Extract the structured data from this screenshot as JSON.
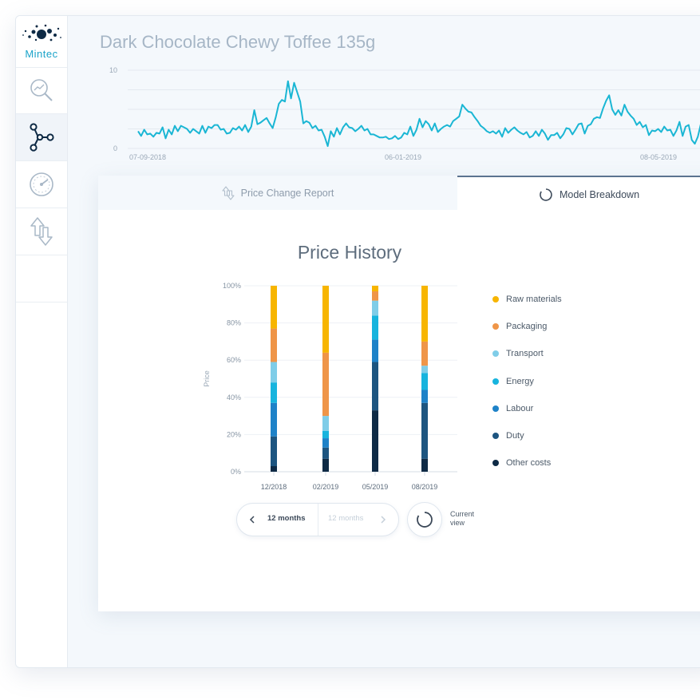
{
  "app": {
    "logo_text": "Mintec",
    "product_title": "Dark Chocolate Chewy Toffee 135g"
  },
  "sidebar": {
    "items": [
      {
        "icon": "chart-search-icon",
        "active": false
      },
      {
        "icon": "model-nodes-icon",
        "active": true
      },
      {
        "icon": "gauge-icon",
        "active": false
      },
      {
        "icon": "arrows-updown-icon",
        "active": false
      }
    ]
  },
  "tabs": {
    "price_change": "Price Change Report",
    "model_breakdown": "Model Breakdown"
  },
  "line_chart_data": {
    "type": "line",
    "y_ticks": [
      "10",
      "0"
    ],
    "ylim": [
      0,
      10
    ],
    "x_ticks": [
      "07-09-2018",
      "06-01-2019",
      "08-05-2019"
    ],
    "color": "#1ab6d4",
    "values": [
      2.2,
      1.6,
      2.4,
      1.8,
      1.9,
      1.5,
      2.0,
      1.9,
      2.7,
      1.3,
      2.4,
      1.8,
      2.9,
      2.2,
      2.9,
      2.7,
      2.5,
      2.0,
      2.5,
      2.2,
      1.9,
      2.9,
      2.0,
      2.8,
      2.6,
      3.0,
      3.0,
      2.4,
      2.5,
      1.9,
      2.0,
      2.6,
      2.4,
      2.8,
      2.3,
      3.0,
      2.1,
      2.8,
      4.9,
      3.1,
      3.3,
      3.6,
      3.9,
      3.2,
      2.6,
      4.0,
      5.7,
      6.2,
      6.0,
      8.6,
      6.4,
      8.4,
      7.2,
      6.0,
      3.2,
      3.5,
      3.3,
      2.6,
      2.9,
      2.3,
      2.4,
      1.5,
      0.3,
      2.2,
      1.5,
      2.6,
      1.8,
      2.7,
      3.2,
      2.7,
      2.6,
      2.2,
      2.5,
      2.9,
      2.3,
      2.5,
      1.8,
      1.8,
      1.6,
      1.4,
      1.4,
      1.5,
      1.2,
      1.3,
      1.6,
      1.2,
      1.4,
      2.0,
      1.8,
      2.8,
      1.6,
      2.4,
      3.8,
      2.7,
      3.5,
      3.1,
      2.3,
      3.2,
      2.1,
      2.5,
      2.8,
      3.0,
      2.8,
      3.5,
      3.8,
      4.1,
      5.6,
      5.1,
      4.7,
      4.6,
      4.0,
      3.5,
      2.9,
      2.6,
      2.2,
      2.0,
      2.2,
      1.9,
      2.3,
      1.5,
      2.6,
      2.0,
      2.4,
      2.7,
      2.3,
      2.0,
      1.8,
      2.1,
      1.4,
      1.6,
      2.2,
      1.6,
      2.4,
      1.9,
      1.1,
      1.7,
      1.7,
      2.0,
      1.3,
      1.8,
      2.6,
      2.5,
      1.8,
      2.4,
      3.1,
      3.2,
      1.9,
      2.9,
      3.1,
      3.8,
      4.0,
      3.9,
      5.1,
      6.1,
      6.8,
      5.0,
      4.3,
      4.9,
      4.2,
      5.6,
      4.7,
      4.2,
      3.8,
      3.0,
      3.4,
      2.7,
      3.0,
      1.7,
      2.3,
      2.2,
      2.5,
      2.1,
      2.8,
      2.3,
      2.4,
      1.6,
      2.3,
      3.4,
      1.6,
      2.8,
      3.0,
      1.1,
      0.6,
      1.5,
      3.2,
      2.8,
      0.3,
      2.5,
      2.4,
      3.8,
      3.3,
      3.4
    ]
  },
  "chart_data": {
    "type": "bar",
    "stacked": true,
    "title": "Price History",
    "ylabel": "Price",
    "ylim": [
      0,
      100
    ],
    "y_ticks": [
      "0%",
      "20%",
      "40%",
      "60%",
      "80%",
      "100%"
    ],
    "categories": [
      "12/2018",
      "02/2019",
      "05/2019",
      "08/2019"
    ],
    "grid": true,
    "legend_position": "right",
    "series": [
      {
        "name": "Other costs",
        "color": "#0e2a45",
        "values": [
          3,
          7,
          33,
          7
        ]
      },
      {
        "name": "Duty",
        "color": "#1d5580",
        "values": [
          16,
          6,
          26,
          30
        ]
      },
      {
        "name": "Labour",
        "color": "#1e82c8",
        "values": [
          18,
          5,
          12,
          7
        ]
      },
      {
        "name": "Energy",
        "color": "#17b4de",
        "values": [
          11,
          4,
          13,
          9
        ]
      },
      {
        "name": "Transport",
        "color": "#7fcde8",
        "values": [
          11,
          8,
          8,
          4
        ]
      },
      {
        "name": "Packaging",
        "color": "#ef9548",
        "values": [
          18,
          34,
          5,
          13
        ]
      },
      {
        "name": "Raw materials",
        "color": "#f7b500",
        "values": [
          23,
          36,
          3,
          30
        ]
      }
    ]
  },
  "legend": [
    {
      "name": "Raw materials",
      "color": "#f7b500"
    },
    {
      "name": "Packaging",
      "color": "#ef9548"
    },
    {
      "name": "Transport",
      "color": "#7fcde8"
    },
    {
      "name": "Energy",
      "color": "#17b4de"
    },
    {
      "name": "Labour",
      "color": "#1e82c8"
    },
    {
      "name": "Duty",
      "color": "#1d5580"
    },
    {
      "name": "Other costs",
      "color": "#0e2a45"
    }
  ],
  "controls": {
    "period_current": "12 months",
    "period_next": "12 months",
    "view_label": "Current view"
  }
}
